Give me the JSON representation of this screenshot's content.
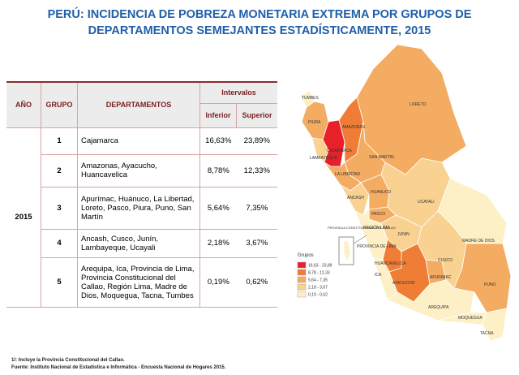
{
  "title": [
    "PERÚ: INCIDENCIA DE POBREZA MONETARIA EXTREMA POR GRUPOS DE",
    "DEPARTAMENTOS SEMEJANTES ESTADÍSTICAMENTE, 2015"
  ],
  "table": {
    "headers": {
      "year": "AÑO",
      "group": "GRUPO",
      "departments": "DEPARTAMENTOS",
      "intervals": "Intervalos",
      "lower": "Inferior",
      "upper": "Superior"
    },
    "year": "2015",
    "rows": [
      [
        "1",
        "Cajamarca",
        "16,63%",
        "23,89%"
      ],
      [
        "2",
        "Amazonas, Ayacucho, Huancavelica",
        "8,78%",
        "12,33%"
      ],
      [
        "3",
        "Apurímac, Huánuco, La Libertad, Loreto, Pasco, Piura, Puno, San Martín",
        "5,64%",
        "7,35%"
      ],
      [
        "4",
        "Ancash, Cusco, Junín, Lambayeque, Ucayali",
        "2,18%",
        "3,67%"
      ],
      [
        "5",
        "Arequipa, Ica, Provincia de Lima, Provincia Constitucional del Callao, Región Lima, Madre de Dios, Moquegua, Tacna, Tumbes",
        "0,19%",
        "0,62%"
      ]
    ]
  },
  "map": {
    "labels": [
      "TUMBES",
      "PIURA",
      "LORETO",
      "AMAZONAS",
      "CAJAMARCA",
      "LAMBAYEQUE",
      "SAN MARTIN",
      "LA LIBERTAD",
      "ANCASH",
      "HUANUCO",
      "UCAYALI",
      "PASCO",
      "PROVINCIA CONSTITUCIONAL DEL CALLAO",
      "REGIÓN LIMA",
      "PROVINCIA DE LIMA",
      "JUNIN",
      "MADRE DE DIOS",
      "CUSCO",
      "HUANCAVELICA",
      "ICA",
      "AYACUCHO",
      "APURIMAC",
      "PUNO",
      "AREQUIPA",
      "MOQUEGUA",
      "TACNA"
    ],
    "legend": {
      "title": "Grupos",
      "items": [
        "16,63 - 23,89",
        "8,78 - 12,33",
        "5,64 - 7,35",
        "2,18 - 3,67",
        "0,19 - 0,62"
      ]
    }
  },
  "notes": [
    "1/: Incluye la Provincia Constitucional del Callao.",
    "Fuente: Instituto Nacional de Estadística e Informática - Encuesta Nacional de Hogares 2015."
  ]
}
